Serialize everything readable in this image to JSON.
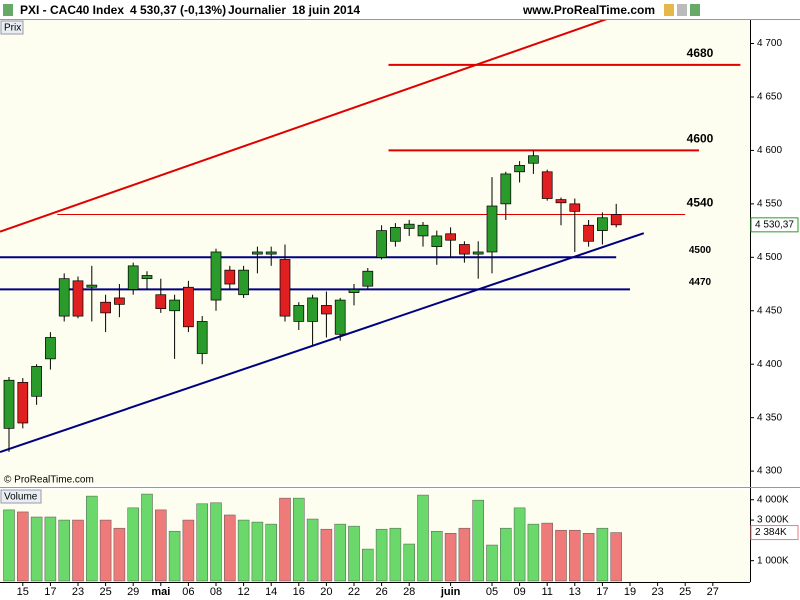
{
  "header": {
    "symbol": "PXI - CAC40 Index",
    "quote": "4 530,37 (-0,13%)",
    "period": "Journalier",
    "date": "18 juin 2014",
    "site": "www.ProRealTime.com",
    "copyright": "© ProRealTime.com"
  },
  "chart_data": [
    {
      "type": "candlestick",
      "title": "Prix",
      "categories": [
        null,
        "15",
        null,
        "17",
        null,
        "23",
        null,
        "25",
        null,
        "29",
        null,
        "mai",
        null,
        "06",
        null,
        "08",
        null,
        "12",
        null,
        "14",
        null,
        "16",
        null,
        "20",
        null,
        "22",
        null,
        "26",
        null,
        "28",
        null,
        null,
        "juin",
        null,
        null,
        "05",
        null,
        "09",
        null,
        "11",
        null,
        "13",
        null,
        "17",
        null,
        "19",
        null,
        "23",
        null,
        "25",
        null,
        "27"
      ],
      "open": [
        4340,
        4383,
        4370,
        4405,
        4445,
        4478,
        4472,
        4458,
        4462,
        4470,
        4480,
        4465,
        4450,
        4472,
        4410,
        4460,
        4488,
        4465,
        4503,
        4503,
        4498,
        4440,
        4440,
        4455,
        4428,
        4467,
        4473,
        4500,
        4515,
        4527,
        4520,
        4510,
        4522,
        4512,
        4503,
        4505,
        4550,
        4580,
        4588,
        4580,
        4554,
        4550,
        4530,
        4525,
        4540,
        null,
        null,
        null,
        null,
        null,
        null,
        null
      ],
      "high": [
        4388,
        4387,
        4400,
        4430,
        4485,
        4482,
        4492,
        4465,
        4475,
        4495,
        4487,
        4480,
        4465,
        4478,
        4445,
        4508,
        4492,
        4492,
        4510,
        4510,
        4512,
        4458,
        4465,
        4468,
        4462,
        4475,
        4490,
        4530,
        4532,
        4535,
        4533,
        4525,
        4528,
        4515,
        4515,
        4575,
        4580,
        4590,
        4600,
        4582,
        4556,
        4555,
        4535,
        4542,
        4550,
        null,
        null,
        null,
        null,
        null,
        null,
        null
      ],
      "low": [
        4318,
        4340,
        4362,
        4395,
        4440,
        4443,
        4440,
        4430,
        4444,
        4465,
        4470,
        4448,
        4405,
        4430,
        4400,
        4450,
        4470,
        4462,
        4485,
        4492,
        4440,
        4432,
        4418,
        4425,
        4422,
        4455,
        4470,
        4498,
        4510,
        4520,
        4510,
        4493,
        4500,
        4495,
        4480,
        4485,
        4535,
        4570,
        4578,
        4553,
        4530,
        4505,
        4510,
        4512,
        4528,
        null,
        null,
        null,
        null,
        null,
        null,
        null
      ],
      "close": [
        4385,
        4345,
        4398,
        4425,
        4480,
        4445,
        4474,
        4448,
        4456,
        4492,
        4483,
        4452,
        4460,
        4435,
        4440,
        4505,
        4475,
        4488,
        4505,
        4505,
        4445,
        4455,
        4462,
        4447,
        4460,
        4470,
        4487,
        4525,
        4528,
        4531,
        4530,
        4520,
        4516,
        4503,
        4505,
        4548,
        4578,
        4586,
        4595,
        4555,
        4551,
        4543,
        4515,
        4537,
        4530.37,
        null,
        null,
        null,
        null,
        null,
        null,
        null
      ],
      "up_color": "#2a9a2a",
      "down_color": "#e02020",
      "ylim": [
        4287,
        4722
      ],
      "yticks": [
        {
          "value": 4300,
          "label": "4 300"
        },
        {
          "value": 4350,
          "label": "4 350"
        },
        {
          "value": 4400,
          "label": "4 400"
        },
        {
          "value": 4450,
          "label": "4 450"
        },
        {
          "value": 4500,
          "label": "4 500"
        },
        {
          "value": 4550,
          "label": "4 550"
        },
        {
          "value": 4600,
          "label": "4 600"
        },
        {
          "value": 4650,
          "label": "4 650"
        },
        {
          "value": 4700,
          "label": "4 700"
        }
      ],
      "last": {
        "value": 4530.37,
        "label": "4 530,37"
      },
      "levels": [
        {
          "value": 4680,
          "label": "4680",
          "color": "#e00000",
          "from": 28,
          "to": 53,
          "width": 2
        },
        {
          "value": 4600,
          "label": "4600",
          "color": "#e00000",
          "from": 28,
          "to": 50,
          "width": 2
        },
        {
          "value": 4540,
          "label": "4540",
          "color": "#e00000",
          "from": 4,
          "to": 49,
          "width": 1
        },
        {
          "value": 4500,
          "label": "4500",
          "color": "#000080",
          "from": 0,
          "to": 44,
          "width": 2
        },
        {
          "value": 4470,
          "label": "4470",
          "color": "#000080",
          "from": 0,
          "to": 45,
          "width": 2
        }
      ],
      "trendlines": [
        {
          "color": "#e00000",
          "start": [
            0,
            4526.9
          ],
          "end": [
            44,
            4726
          ]
        },
        {
          "color": "#000080",
          "start": [
            0,
            4320.7
          ],
          "end": [
            46,
            4522.6
          ]
        }
      ]
    },
    {
      "type": "bar",
      "title": "Volume",
      "values": [
        3500,
        3400,
        3150,
        3150,
        3000,
        3000,
        4180,
        3000,
        2600,
        3600,
        4280,
        3500,
        2450,
        3000,
        3800,
        3850,
        3250,
        3000,
        2900,
        2800,
        4080,
        4080,
        3050,
        2550,
        2800,
        2700,
        1570,
        2550,
        2600,
        1820,
        4230,
        2450,
        2350,
        2600,
        3980,
        1770,
        2600,
        3600,
        2800,
        2850,
        2500,
        2500,
        2350,
        2600,
        2384,
        null,
        null,
        null,
        null,
        null,
        null,
        null
      ],
      "up_color": "#6ad86a",
      "down_color": "#ee7a7a",
      "ylim": [
        -50,
        4480
      ],
      "yticks": [
        {
          "value": 1000,
          "label": "1 000K"
        },
        {
          "value": 3000,
          "label": "3 000K"
        },
        {
          "value": 4000,
          "label": "4 000K"
        }
      ],
      "last": {
        "value": 2384,
        "label": "2 384K"
      }
    }
  ]
}
